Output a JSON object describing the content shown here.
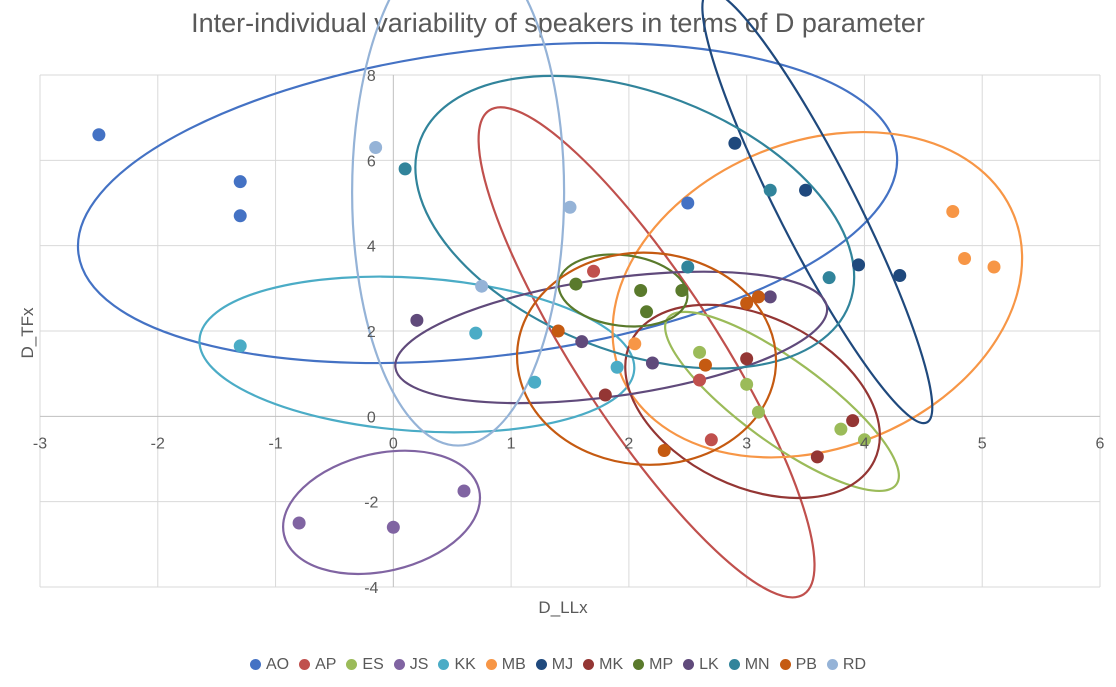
{
  "chart_data": {
    "type": "scatter",
    "title": "Inter-individual variability of speakers in terms of D parameter",
    "xlabel": "D_LLx",
    "ylabel": "D_TFx",
    "xlim": [
      -3,
      6
    ],
    "ylim": [
      -4,
      8
    ],
    "xticks": [
      -3,
      -2,
      -1,
      0,
      1,
      2,
      3,
      4,
      5,
      6
    ],
    "yticks": [
      -4,
      -2,
      0,
      2,
      4,
      6,
      8
    ],
    "grid": true,
    "legend_position": "bottom",
    "series": [
      {
        "name": "AO",
        "color": "#4472C4",
        "points": [
          [
            -2.5,
            6.6
          ],
          [
            -1.3,
            5.5
          ],
          [
            -1.3,
            4.7
          ],
          [
            2.5,
            5.0
          ]
        ],
        "ellipse": {
          "cx": 0.8,
          "cy": 5.0,
          "rx": 3.5,
          "ry": 1.3,
          "angle": 7
        }
      },
      {
        "name": "AP",
        "color": "#C0504D",
        "points": [
          [
            1.7,
            3.4
          ],
          [
            2.6,
            0.85
          ],
          [
            2.7,
            -0.55
          ]
        ],
        "ellipse": {
          "cx": 2.15,
          "cy": 1.5,
          "rx": 2.45,
          "ry": 0.6,
          "angle": -57
        }
      },
      {
        "name": "ES",
        "color": "#9BBB59",
        "points": [
          [
            2.6,
            1.5
          ],
          [
            3.0,
            0.75
          ],
          [
            3.1,
            0.1
          ],
          [
            3.8,
            -0.3
          ],
          [
            4.0,
            -0.55
          ]
        ],
        "ellipse": {
          "cx": 3.3,
          "cy": 0.35,
          "rx": 1.2,
          "ry": 0.35,
          "angle": -36
        }
      },
      {
        "name": "JS",
        "color": "#8064A2",
        "points": [
          [
            -0.8,
            -2.5
          ],
          [
            0.0,
            -2.6
          ],
          [
            0.6,
            -1.75
          ]
        ],
        "ellipse": {
          "cx": -0.1,
          "cy": -2.25,
          "rx": 0.85,
          "ry": 0.5,
          "angle": 13
        }
      },
      {
        "name": "KK",
        "color": "#4BACC6",
        "points": [
          [
            -1.3,
            1.65
          ],
          [
            0.7,
            1.95
          ],
          [
            1.2,
            0.8
          ],
          [
            1.9,
            1.15
          ]
        ],
        "ellipse": {
          "cx": 0.2,
          "cy": 1.45,
          "rx": 1.85,
          "ry": 0.65,
          "angle": -4
        }
      },
      {
        "name": "MB",
        "color": "#F79646",
        "points": [
          [
            2.05,
            1.7
          ],
          [
            4.75,
            4.8
          ],
          [
            4.85,
            3.7
          ],
          [
            5.1,
            3.5
          ]
        ],
        "ellipse": {
          "cx": 3.6,
          "cy": 2.85,
          "rx": 1.8,
          "ry": 1.3,
          "angle": 22
        }
      },
      {
        "name": "MJ",
        "color": "#1F497D",
        "points": [
          [
            2.9,
            6.4
          ],
          [
            3.5,
            5.3
          ],
          [
            3.95,
            3.55
          ],
          [
            4.3,
            3.3
          ]
        ],
        "ellipse": {
          "cx": 3.6,
          "cy": 4.9,
          "rx": 2.05,
          "ry": 0.33,
          "angle": -63
        }
      },
      {
        "name": "MK",
        "color": "#943634",
        "points": [
          [
            1.8,
            0.5
          ],
          [
            3.0,
            1.35
          ],
          [
            3.6,
            -0.95
          ],
          [
            3.9,
            -0.1
          ]
        ],
        "ellipse": {
          "cx": 3.05,
          "cy": 0.35,
          "rx": 1.15,
          "ry": 0.72,
          "angle": -26
        }
      },
      {
        "name": "MP",
        "color": "#5A7A2C",
        "points": [
          [
            1.55,
            3.1
          ],
          [
            2.1,
            2.95
          ],
          [
            2.15,
            2.45
          ],
          [
            2.45,
            2.95
          ]
        ],
        "ellipse": {
          "cx": 1.95,
          "cy": 2.95,
          "rx": 0.55,
          "ry": 0.3,
          "angle": -7
        }
      },
      {
        "name": "LK",
        "color": "#604A7B",
        "points": [
          [
            0.2,
            2.25
          ],
          [
            1.6,
            1.75
          ],
          [
            2.2,
            1.25
          ],
          [
            3.2,
            2.8
          ]
        ],
        "ellipse": {
          "cx": 1.85,
          "cy": 1.85,
          "rx": 1.85,
          "ry": 0.5,
          "angle": 8
        }
      },
      {
        "name": "MN",
        "color": "#31849B",
        "points": [
          [
            0.1,
            5.8
          ],
          [
            2.5,
            3.5
          ],
          [
            3.2,
            5.3
          ],
          [
            3.7,
            3.25
          ]
        ],
        "ellipse": {
          "cx": 2.05,
          "cy": 4.55,
          "rx": 1.95,
          "ry": 1.1,
          "angle": -21
        }
      },
      {
        "name": "PB",
        "color": "#C55A11",
        "points": [
          [
            1.4,
            2.0
          ],
          [
            2.3,
            -0.8
          ],
          [
            2.65,
            1.2
          ],
          [
            3.0,
            2.65
          ],
          [
            3.1,
            2.8
          ]
        ],
        "ellipse": {
          "cx": 2.15,
          "cy": 1.35,
          "rx": 1.1,
          "ry": 0.9,
          "angle": -3
        }
      },
      {
        "name": "RD",
        "color": "#95B3D7",
        "points": [
          [
            -0.15,
            6.3
          ],
          [
            0.75,
            3.05
          ],
          [
            1.5,
            4.9
          ]
        ],
        "ellipse": {
          "cx": 0.55,
          "cy": 5.25,
          "rx": 0.9,
          "ry": 2.15,
          "angle": 0
        }
      }
    ]
  }
}
